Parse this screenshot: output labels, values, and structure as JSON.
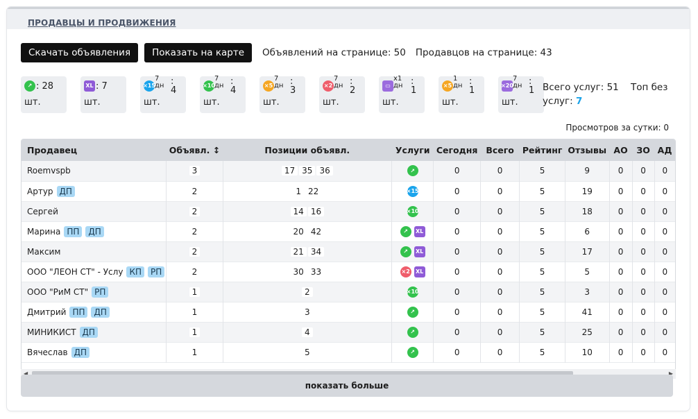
{
  "header": {
    "title": "ПРОДАВЦЫ И ПРОДВИЖЕНИЯ"
  },
  "actions": {
    "download": "Скачать объявления",
    "map": "Показать на карте",
    "ads_per_page": "Объявлений на странице: 50",
    "sellers_per_page": "Продавцов на странице: 43"
  },
  "services": [
    {
      "icon": "promote-icon",
      "badge": "↗",
      "color": "green",
      "sup": "",
      "count": ": 28",
      "pcs": "шт."
    },
    {
      "icon": "xl-icon",
      "badge": "XL",
      "color": "xl",
      "sup": "",
      "count": ": 7",
      "pcs": "шт."
    },
    {
      "icon": "x15-icon",
      "badge": "×15",
      "color": "blue",
      "sup": "7 дн",
      "count": ": 4",
      "pcs": "шт."
    },
    {
      "icon": "x10-icon",
      "badge": "×10",
      "color": "green",
      "sup": "7 дн",
      "count": ": 4",
      "pcs": "шт."
    },
    {
      "icon": "x5-icon",
      "badge": "×5",
      "color": "orange",
      "sup": "7 дн",
      "count": ": 3",
      "pcs": "шт."
    },
    {
      "icon": "x2-icon",
      "badge": "×2",
      "color": "red",
      "sup": "7 дн",
      "count": ": 2",
      "pcs": "шт."
    },
    {
      "icon": "highlight-icon",
      "badge": "▭",
      "color": "purple",
      "sup": "x1 дн",
      "count": ": 1",
      "pcs": "шт."
    },
    {
      "icon": "x5-icon",
      "badge": "×5",
      "color": "orange",
      "sup": "1 дн",
      "count": ": 1",
      "pcs": "шт."
    },
    {
      "icon": "x20-icon",
      "badge": "×20",
      "color": "purple",
      "sup": "7 дн",
      "count": ": 1",
      "pcs": "шт."
    }
  ],
  "totals": {
    "total_services": "Всего услуг: 51",
    "top_label": "Топ без",
    "top_label2": "услуг:",
    "top_value": "7"
  },
  "views": "Просмотров за сутки: 0",
  "table": {
    "headers": [
      "Продавец",
      "Объявл. ↕",
      "Позиции объявл.",
      "Услуги",
      "Сегодня",
      "Всего",
      "Рейтинг",
      "Отзывы",
      "АО",
      "ЗО",
      "АД"
    ],
    "rows": [
      {
        "seller": "Roemvspb",
        "chips": [],
        "ads": "3",
        "positions": [
          "17",
          "35",
          "36"
        ],
        "services": [
          {
            "b": "↗",
            "c": "green"
          }
        ],
        "today": "0",
        "total": "0",
        "rating": "5",
        "reviews": "9",
        "ao": "0",
        "zo": "0",
        "ad": "0"
      },
      {
        "seller": "Артур",
        "chips": [
          "ДП"
        ],
        "ads": "2",
        "positions": [
          "1",
          "22"
        ],
        "services": [
          {
            "b": "×15",
            "c": "blue"
          }
        ],
        "today": "0",
        "total": "0",
        "rating": "5",
        "reviews": "19",
        "ao": "0",
        "zo": "0",
        "ad": "0"
      },
      {
        "seller": "Сергей",
        "chips": [],
        "ads": "2",
        "positions": [
          "14",
          "16"
        ],
        "services": [
          {
            "b": "×10",
            "c": "green"
          }
        ],
        "today": "0",
        "total": "0",
        "rating": "5",
        "reviews": "18",
        "ao": "0",
        "zo": "0",
        "ad": "0"
      },
      {
        "seller": "Марина",
        "chips": [
          "ПП",
          "ДП"
        ],
        "ads": "2",
        "positions": [
          "20",
          "42"
        ],
        "services": [
          {
            "b": "↗",
            "c": "green"
          },
          {
            "b": "XL",
            "c": "xl"
          }
        ],
        "today": "0",
        "total": "0",
        "rating": "5",
        "reviews": "6",
        "ao": "0",
        "zo": "0",
        "ad": "0"
      },
      {
        "seller": "Максим",
        "chips": [],
        "ads": "2",
        "positions": [
          "21",
          "34"
        ],
        "services": [
          {
            "b": "↗",
            "c": "green"
          },
          {
            "b": "XL",
            "c": "xl"
          }
        ],
        "today": "0",
        "total": "0",
        "rating": "5",
        "reviews": "17",
        "ao": "0",
        "zo": "0",
        "ad": "0"
      },
      {
        "seller": "ООО \"ЛЕОН СТ\" - Услу",
        "chips": [
          "КП",
          "РП"
        ],
        "ads": "2",
        "positions": [
          "30",
          "33"
        ],
        "services": [
          {
            "b": "×2",
            "c": "red"
          },
          {
            "b": "XL",
            "c": "xl"
          }
        ],
        "today": "0",
        "total": "0",
        "rating": "5",
        "reviews": "5",
        "ao": "0",
        "zo": "0",
        "ad": "0"
      },
      {
        "seller": "ООО \"РиМ СТ\"",
        "chips": [
          "РП"
        ],
        "ads": "1",
        "positions": [
          "2"
        ],
        "services": [
          {
            "b": "×10",
            "c": "green"
          }
        ],
        "today": "0",
        "total": "0",
        "rating": "5",
        "reviews": "3",
        "ao": "0",
        "zo": "0",
        "ad": "0"
      },
      {
        "seller": "Дмитрий",
        "chips": [
          "ПП",
          "ДП"
        ],
        "ads": "1",
        "positions": [
          "3"
        ],
        "services": [
          {
            "b": "↗",
            "c": "green"
          }
        ],
        "today": "0",
        "total": "0",
        "rating": "5",
        "reviews": "41",
        "ao": "0",
        "zo": "0",
        "ad": "0"
      },
      {
        "seller": "МИНИКИСТ",
        "chips": [
          "ДП"
        ],
        "ads": "1",
        "positions": [
          "4"
        ],
        "services": [
          {
            "b": "↗",
            "c": "green"
          }
        ],
        "today": "0",
        "total": "0",
        "rating": "5",
        "reviews": "25",
        "ao": "0",
        "zo": "0",
        "ad": "0"
      },
      {
        "seller": "Вячеслав",
        "chips": [
          "ДП"
        ],
        "ads": "1",
        "positions": [
          "5"
        ],
        "services": [
          {
            "b": "↗",
            "c": "green"
          }
        ],
        "today": "0",
        "total": "0",
        "rating": "5",
        "reviews": "10",
        "ao": "0",
        "zo": "0",
        "ad": "0"
      }
    ]
  },
  "show_more": "показать больше",
  "scroll": {
    "left_arrow": "◀",
    "right_arrow": "▶"
  },
  "colors": {
    "accent": "#1ca3e8",
    "chip": "#a9d8f5",
    "header_bg": "#d5d8dd"
  }
}
